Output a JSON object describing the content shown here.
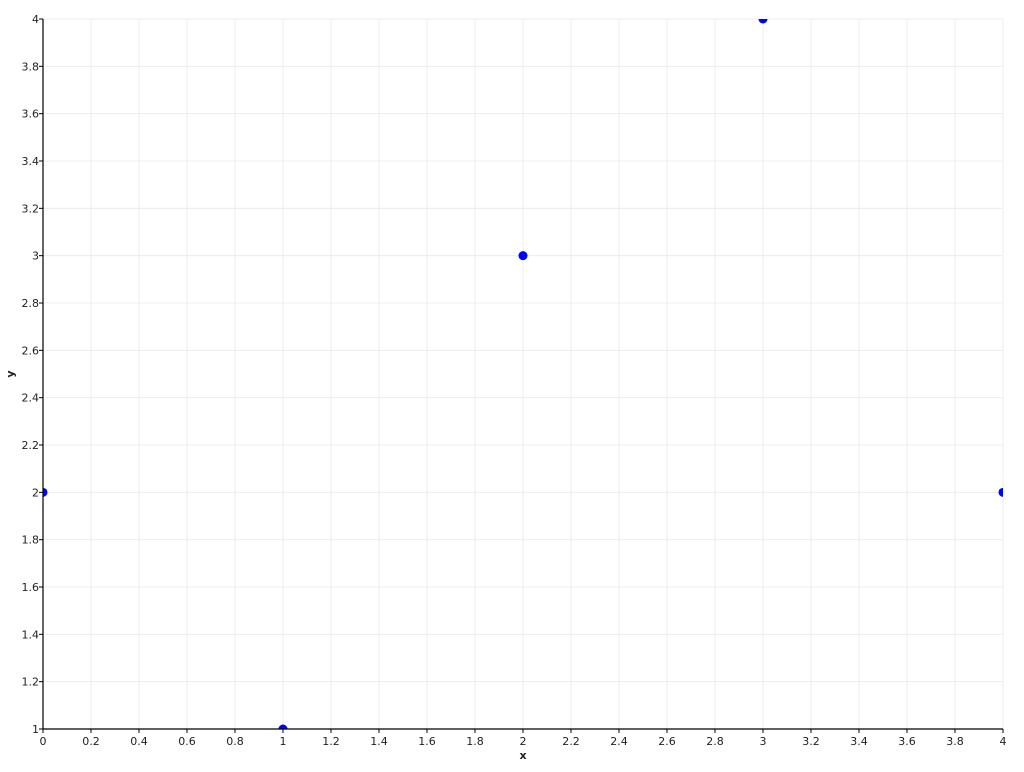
{
  "chart_data": {
    "type": "scatter",
    "title": "",
    "xlabel": "x",
    "ylabel": "y",
    "xlim": [
      0,
      4
    ],
    "ylim": [
      1,
      4
    ],
    "grid": true,
    "x_ticks": [
      "0",
      "0.2",
      "0.4",
      "0.6",
      "0.8",
      "1",
      "1.2",
      "1.4",
      "1.6",
      "1.8",
      "2",
      "2.2",
      "2.4",
      "2.6",
      "2.8",
      "3",
      "3.2",
      "3.4",
      "3.6",
      "3.8",
      "4"
    ],
    "y_ticks": [
      "1",
      "1.2",
      "1.4",
      "1.6",
      "1.8",
      "2",
      "2.2",
      "2.4",
      "2.6",
      "2.8",
      "3",
      "3.2",
      "3.4",
      "3.6",
      "3.8",
      "4"
    ],
    "series": [
      {
        "x": [
          0,
          1,
          2,
          3,
          4
        ],
        "y": [
          2,
          1,
          3,
          4,
          2
        ],
        "color": "#0000ff"
      }
    ]
  }
}
